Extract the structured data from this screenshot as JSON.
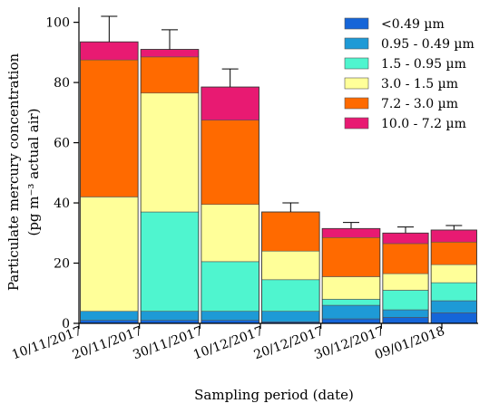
{
  "chart_data": {
    "type": "bar",
    "stacked": true,
    "categories": [
      "10/11/2017",
      "20/11/2017",
      "30/11/2017",
      "10/12/2017",
      "20/12/2017",
      "30/12/2017",
      "09/01/2018"
    ],
    "x_ticks": [
      {
        "label": "10/11/2017",
        "at": 0
      },
      {
        "label": "20/11/2017",
        "at": 1
      },
      {
        "label": "30/11/2017",
        "at": 2
      },
      {
        "label": "10/12/2017",
        "at": 3
      },
      {
        "label": "20/12/2017",
        "at": 4
      },
      {
        "label": "30/12/2017",
        "at": 5
      },
      {
        "label": "09/01/2018",
        "at": 6
      }
    ],
    "bars": [
      {
        "start": 0.0,
        "end": 1.0
      },
      {
        "start": 1.0,
        "end": 2.0
      },
      {
        "start": 2.0,
        "end": 3.0
      },
      {
        "start": 3.0,
        "end": 4.0
      },
      {
        "start": 4.0,
        "end": 5.0
      },
      {
        "start": 5.0,
        "end": 5.8
      },
      {
        "start": 5.8,
        "end": 6.6
      }
    ],
    "series": [
      {
        "name": "<0.49 µm",
        "color": "#1565d8",
        "values": [
          1.0,
          1.0,
          1.0,
          0.5,
          1.5,
          2.0,
          3.5
        ]
      },
      {
        "name": "0.95 - 0.49 µm",
        "color": "#1e9ad6",
        "values": [
          3.0,
          3.0,
          3.0,
          3.5,
          4.5,
          2.5,
          4.0
        ]
      },
      {
        "name": "1.5 - 0.95 µm",
        "color": "#4ff5cf",
        "values": [
          0.0,
          33.0,
          16.5,
          10.5,
          2.0,
          6.5,
          6.0
        ]
      },
      {
        "name": "3.0 - 1.5 µm",
        "color": "#ffff99",
        "values": [
          38.0,
          39.5,
          19.0,
          9.5,
          7.5,
          5.5,
          6.0
        ]
      },
      {
        "name": "7.2 - 3.0 µm",
        "color": "#ff6a00",
        "values": [
          45.5,
          12.0,
          28.0,
          13.0,
          13.0,
          10.0,
          7.5
        ]
      },
      {
        "name": "10.0 - 7.2 µm",
        "color": "#e81a72",
        "values": [
          6.0,
          2.5,
          11.0,
          0.0,
          3.0,
          3.5,
          4.0
        ]
      }
    ],
    "error_bars": [
      8.5,
      6.5,
      6.0,
      3.0,
      2.0,
      2.0,
      1.5
    ],
    "ylim": [
      0,
      105
    ],
    "y_ticks": [
      0,
      20,
      40,
      60,
      80,
      100
    ],
    "xlim": [
      0,
      6.6
    ],
    "xlabel": "Sampling period (date)",
    "ylabel_line1": "Particulate mercury concentration",
    "ylabel_line2": "(pg m⁻³ actual air)",
    "legend_position": "top-right",
    "grid": false
  }
}
